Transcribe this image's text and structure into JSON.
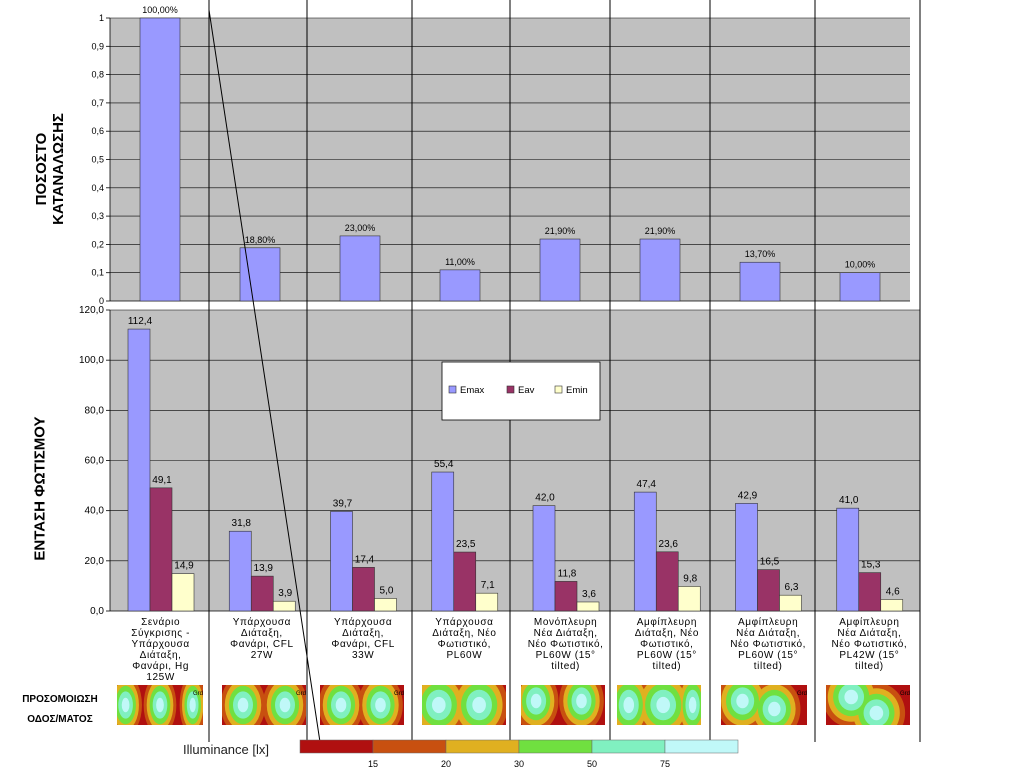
{
  "titles": {
    "consumption_axis": [
      "ΠΟΣΟΣΤΟ",
      "ΚΑΤΑΝΑΛΩΣΗΣ"
    ],
    "illuminance_axis": "ΕΝΤΑΣΗ ΦΩΤΙΣΜΟΥ",
    "simulation": [
      "ΠΡΟΣΟΜΟΙΩΣΗ",
      "ΟΔΟΣ/ΜΑΤΟΣ"
    ]
  },
  "categories": [
    [
      "Σενάριο",
      "Σύγκρισης -",
      "Υπάρχουσα",
      "Διάταξη,",
      "Φανάρι, Hg",
      "125W"
    ],
    [
      "Υπάρχουσα",
      "Διάταξη,",
      "Φανάρι, CFL",
      "27W"
    ],
    [
      "Υπάρχουσα",
      "Διάταξη,",
      "Φανάρι, CFL",
      "33W"
    ],
    [
      "Υπάρχουσα",
      "Διάταξη,  Νέο",
      "Φωτιστικό,",
      "PL60W"
    ],
    [
      "Μονόπλευρη",
      "Νέα Διάταξη,",
      "Νέο Φωτιστικό,",
      "PL60W (15°",
      "tilted)"
    ],
    [
      "Αμφίπλευρη",
      "Διάταξη,  Νέο",
      "Φωτιστικό,",
      "PL60W (15°",
      "tilted)"
    ],
    [
      "Αμφίπλευρη",
      "Νέα Διάταξη,",
      "Νέο Φωτιστικό,",
      "PL60W (15°",
      "tilted)"
    ],
    [
      "Αμφίπλευρη",
      "Νέα Διάταξη,",
      "Νέο Φωτιστικό,",
      "PL42W (15°",
      "tilted)"
    ]
  ],
  "chart_data": [
    {
      "type": "bar",
      "ylim": [
        0,
        1
      ],
      "yticks": [
        "0",
        "0,1",
        "0,2",
        "0,3",
        "0,4",
        "0,5",
        "0,6",
        "0,7",
        "0,8",
        "0,9",
        "1"
      ],
      "values": [
        1.0,
        0.188,
        0.23,
        0.11,
        0.219,
        0.219,
        0.137,
        0.1
      ],
      "data_labels": [
        "100,00%",
        "18,80%",
        "23,00%",
        "11,00%",
        "21,90%",
        "21,90%",
        "13,70%",
        "10,00%"
      ],
      "color": "#9999ff",
      "grid": true
    },
    {
      "type": "bar",
      "ylim": [
        0,
        120
      ],
      "yticks": [
        "0,0",
        "20,0",
        "40,0",
        "60,0",
        "80,0",
        "100,0",
        "120,0"
      ],
      "legend_position": "top-center",
      "grid": true,
      "series": [
        {
          "name": "Emax",
          "color": "#9999ff",
          "values": [
            112.4,
            31.8,
            39.7,
            55.4,
            42.0,
            47.4,
            42.9,
            41.0
          ],
          "data_labels": [
            "112,4",
            "31,8",
            "39,7",
            "55,4",
            "42,0",
            "47,4",
            "42,9",
            "41,0"
          ]
        },
        {
          "name": "Eav",
          "color": "#993366",
          "values": [
            49.1,
            13.9,
            17.4,
            23.5,
            11.8,
            23.6,
            16.5,
            15.3
          ],
          "data_labels": [
            "49,1",
            "13,9",
            "17,4",
            "23,5",
            "11,8",
            "23,6",
            "16,5",
            "15,3"
          ]
        },
        {
          "name": "Emin",
          "color": "#ffffcc",
          "values": [
            14.9,
            3.9,
            5.0,
            7.1,
            3.6,
            9.8,
            6.3,
            4.6
          ],
          "data_labels": [
            "14,9",
            "3,9",
            "5,0",
            "7,1",
            "3,6",
            "9,8",
            "6,3",
            "4,6"
          ]
        }
      ]
    },
    {
      "type": "heatmap",
      "title": "Illuminance [lx]",
      "ticks": [
        "15",
        "20",
        "30",
        "50",
        "75"
      ],
      "colors": [
        "#b01010",
        "#c85010",
        "#e0b020",
        "#70e040",
        "#80f0c0",
        "#c0f8f8"
      ],
      "panels": [
        {
          "labels": [
            "Grd"
          ]
        },
        {
          "labels": [
            "Grd"
          ]
        },
        {
          "labels": [
            "Grd"
          ]
        },
        {
          "labels": []
        },
        {
          "labels": []
        },
        {
          "labels": []
        },
        {
          "labels": [
            "Grd"
          ]
        },
        {
          "labels": [
            "Grd"
          ]
        }
      ]
    }
  ]
}
